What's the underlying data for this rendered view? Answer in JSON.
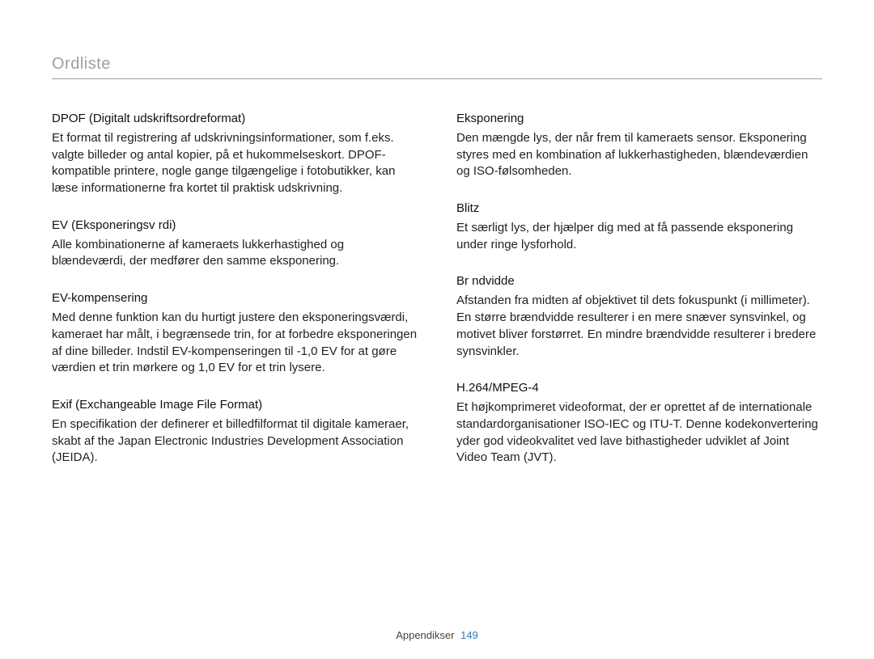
{
  "page": {
    "title": "Ordliste",
    "footer_label": "Appendikser",
    "page_number": "149"
  },
  "left": [
    {
      "title": "DPOF (Digitalt udskriftsordreformat)",
      "body": "Et format til registrering af udskrivningsinformationer, som f.eks. valgte billeder og antal kopier, på et hukommelseskort. DPOF-kompatible printere, nogle gange tilgængelige i fotobutikker, kan læse informationerne fra kortet til praktisk udskrivning."
    },
    {
      "title": "EV (Eksponeringsv rdi)",
      "body": "Alle kombinationerne af kameraets lukkerhastighed og blændeværdi, der medfører den samme eksponering."
    },
    {
      "title": "EV-kompensering",
      "body": "Med denne funktion kan du hurtigt justere den eksponeringsværdi, kameraet har målt, i begrænsede trin, for at forbedre eksponeringen af dine billeder. Indstil EV-kompenseringen til -1,0 EV for at gøre værdien et trin mørkere og 1,0 EV for et trin lysere."
    },
    {
      "title": "Exif (Exchangeable Image File Format)",
      "body": "En specifikation der definerer et billedfilformat til digitale kameraer, skabt af the Japan Electronic Industries Development Association (JEIDA)."
    }
  ],
  "right": [
    {
      "title": "Eksponering",
      "body": "Den mængde lys, der når frem til kameraets sensor. Eksponering styres med en kombination af lukkerhastigheden, blændeværdien og ISO-følsomheden."
    },
    {
      "title": "Blitz",
      "body": "Et særligt lys, der hjælper dig med at få passende eksponering under ringe lysforhold."
    },
    {
      "title": "Br ndvidde",
      "body": "Afstanden fra midten af objektivet til dets fokuspunkt (i millimeter). En større brændvidde resulterer i en mere snæver synsvinkel, og motivet bliver forstørret. En mindre brændvidde resulterer i bredere synsvinkler."
    },
    {
      "title": "H.264/MPEG-4",
      "body": "Et højkomprimeret videoformat, der er oprettet af de internationale standardorganisationer ISO-IEC og ITU-T. Denne kodekonvertering yder god videokvalitet ved lave bithastigheder udviklet af Joint Video Team (JVT)."
    }
  ]
}
